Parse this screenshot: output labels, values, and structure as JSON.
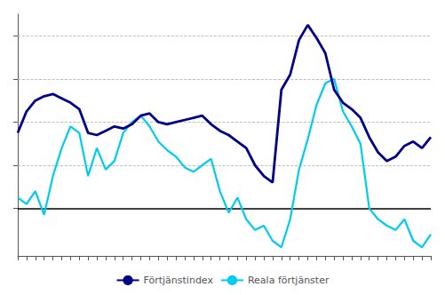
{
  "chart_data": {
    "type": "line",
    "categories": [
      null,
      null,
      null,
      null,
      null,
      null,
      null,
      null,
      null,
      null,
      null,
      null,
      null,
      null,
      null,
      null,
      null,
      null,
      null,
      null,
      null,
      null,
      null,
      null,
      null,
      null,
      null,
      null,
      null,
      null,
      null,
      null,
      null,
      null,
      null,
      null,
      null,
      null,
      null,
      null,
      null,
      null,
      null,
      null,
      null,
      null,
      null,
      null
    ],
    "series": [
      {
        "name": "Förtjänstindex",
        "color": "#00008B",
        "values": [
          3.5,
          4.5,
          5.0,
          5.2,
          5.3,
          5.1,
          4.9,
          4.6,
          3.5,
          3.4,
          3.6,
          3.8,
          3.7,
          3.9,
          4.3,
          4.4,
          4.0,
          3.9,
          4.0,
          4.1,
          4.2,
          4.3,
          3.9,
          3.6,
          3.4,
          3.1,
          2.8,
          2.0,
          1.5,
          1.2,
          5.5,
          6.2,
          7.8,
          8.5,
          7.9,
          7.2,
          5.5,
          4.9,
          4.6,
          4.2,
          3.3,
          2.6,
          2.2,
          2.4,
          2.9,
          3.1,
          2.8,
          3.3
        ]
      },
      {
        "name": "Reala förtjänster",
        "color": "#00CCEE",
        "values": [
          0.5,
          0.2,
          0.8,
          -0.3,
          1.5,
          2.8,
          3.8,
          3.5,
          1.5,
          2.8,
          1.8,
          2.2,
          3.5,
          4.0,
          4.3,
          3.8,
          3.1,
          2.7,
          2.4,
          1.9,
          1.7,
          2.0,
          2.3,
          0.8,
          -0.2,
          0.5,
          -0.5,
          -1.0,
          -0.8,
          -1.5,
          -1.8,
          -0.5,
          1.8,
          3.2,
          4.8,
          5.8,
          6.0,
          4.5,
          3.8,
          3.0,
          0.0,
          -0.5,
          -0.8,
          -1.0,
          -0.5,
          -1.5,
          -1.8,
          -1.2
        ]
      }
    ],
    "ylim": [
      -2.2,
      9.0
    ],
    "yticks": [
      0,
      2,
      4,
      6,
      8
    ],
    "grid": true,
    "legend": "bottom",
    "tick_labels": false
  }
}
